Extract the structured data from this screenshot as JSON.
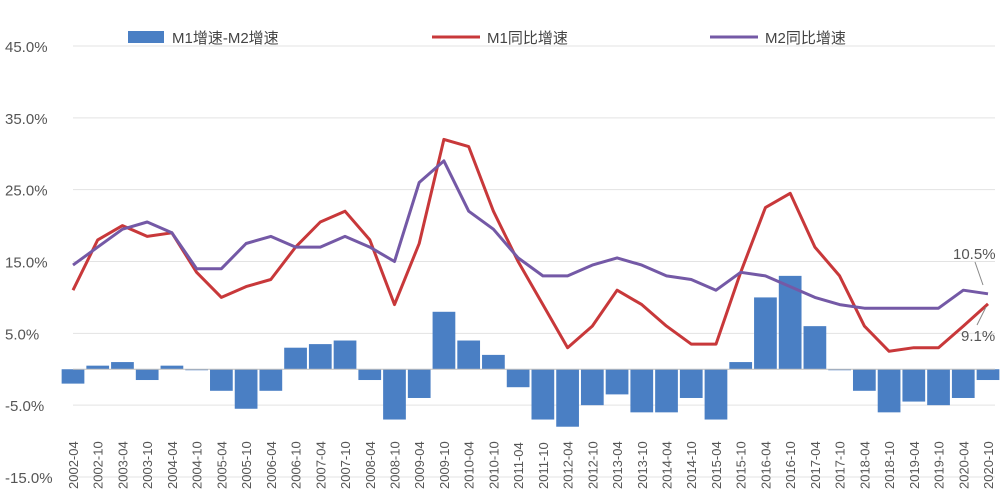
{
  "chart_data": {
    "type": "bar+line",
    "title": "",
    "xlabel": "",
    "ylabel": "",
    "ylim": [
      -15,
      45
    ],
    "y_ticks": [
      "45.0%",
      "35.0%",
      "25.0%",
      "15.0%",
      "5.0%",
      "-5.0%",
      "-15.0%"
    ],
    "y_tick_values": [
      45,
      35,
      25,
      15,
      5,
      -5,
      -15
    ],
    "x_ticks": [
      "2002-04",
      "2002-10",
      "2003-04",
      "2003-10",
      "2004-04",
      "2004-10",
      "2005-04",
      "2005-10",
      "2006-04",
      "2006-10",
      "2007-04",
      "2007-10",
      "2008-04",
      "2008-10",
      "2009-04",
      "2009-10",
      "2010-04",
      "2010-10",
      "2011-04",
      "2011-10",
      "2012-04",
      "2012-10",
      "2013-04",
      "2013-10",
      "2014-04",
      "2014-10",
      "2015-04",
      "2015-10",
      "2016-04",
      "2016-10",
      "2017-04",
      "2017-10",
      "2018-04",
      "2018-10",
      "2019-04",
      "2019-10",
      "2020-04",
      "2020-10"
    ],
    "grid": true,
    "legend_position": "top",
    "colors": {
      "bar": "#4a7fc4",
      "m1": "#c8383a",
      "m2": "#7459a6"
    },
    "series": [
      {
        "name": "M1增速-M2增速",
        "kind": "bar",
        "x": [
          "2002-04",
          "2002-10",
          "2003-04",
          "2003-10",
          "2004-04",
          "2004-10",
          "2005-04",
          "2005-10",
          "2006-04",
          "2006-10",
          "2007-04",
          "2007-10",
          "2008-04",
          "2008-10",
          "2009-04",
          "2009-10",
          "2010-04",
          "2010-10",
          "2011-04",
          "2011-10",
          "2012-04",
          "2012-10",
          "2013-04",
          "2013-10",
          "2014-04",
          "2014-10",
          "2015-04",
          "2015-10",
          "2016-04",
          "2016-10",
          "2017-04",
          "2017-10",
          "2018-04",
          "2018-10",
          "2019-04",
          "2019-10",
          "2020-04",
          "2020-10"
        ],
        "values": [
          -2,
          0.5,
          1,
          -1.5,
          0.5,
          0,
          -3,
          -5.5,
          -3,
          3,
          3.5,
          4,
          -1.5,
          -7,
          -4,
          8,
          4,
          2,
          -2.5,
          -7,
          -8,
          -5,
          -3.5,
          -6,
          -6,
          -4,
          -7,
          1,
          10,
          13,
          6,
          0,
          -3,
          -6,
          -4.5,
          -5,
          -4,
          -1.5
        ]
      },
      {
        "name": "M1同比增速",
        "kind": "line",
        "x": [
          "2002-04",
          "2002-10",
          "2003-04",
          "2003-10",
          "2004-04",
          "2004-10",
          "2005-04",
          "2005-10",
          "2006-04",
          "2006-10",
          "2007-04",
          "2007-10",
          "2008-04",
          "2008-10",
          "2009-04",
          "2009-10",
          "2010-04",
          "2010-10",
          "2011-04",
          "2011-10",
          "2012-04",
          "2012-10",
          "2013-04",
          "2013-10",
          "2014-04",
          "2014-10",
          "2015-04",
          "2015-10",
          "2016-04",
          "2016-10",
          "2017-04",
          "2017-10",
          "2018-04",
          "2018-10",
          "2019-04",
          "2019-10",
          "2020-04",
          "2020-10"
        ],
        "values": [
          11,
          18,
          20,
          18.5,
          19,
          13.5,
          10,
          11.5,
          12.5,
          17,
          20.5,
          22,
          18,
          9,
          17.5,
          32,
          31,
          22,
          15,
          9,
          3,
          6,
          11,
          9,
          6,
          3.5,
          3.5,
          13.5,
          22.5,
          24.5,
          17,
          13,
          6,
          2.5,
          3,
          3,
          6,
          9.1
        ]
      },
      {
        "name": "M2同比增速",
        "kind": "line",
        "x": [
          "2002-04",
          "2002-10",
          "2003-04",
          "2003-10",
          "2004-04",
          "2004-10",
          "2005-04",
          "2005-10",
          "2006-04",
          "2006-10",
          "2007-04",
          "2007-10",
          "2008-04",
          "2008-10",
          "2009-04",
          "2009-10",
          "2010-04",
          "2010-10",
          "2011-04",
          "2011-10",
          "2012-04",
          "2012-10",
          "2013-04",
          "2013-10",
          "2014-04",
          "2014-10",
          "2015-04",
          "2015-10",
          "2016-04",
          "2016-10",
          "2017-04",
          "2017-10",
          "2018-04",
          "2018-10",
          "2019-04",
          "2019-10",
          "2020-04",
          "2020-10"
        ],
        "values": [
          14.5,
          17,
          19.5,
          20.5,
          19,
          14,
          14,
          17.5,
          18.5,
          17,
          17,
          18.5,
          17,
          15,
          26,
          29,
          22,
          19.5,
          15.5,
          13,
          13,
          14.5,
          15.5,
          14.5,
          13,
          12.5,
          11,
          13.5,
          13,
          11.5,
          10,
          9,
          8.5,
          8.5,
          8.5,
          8.5,
          11,
          10.5
        ]
      }
    ],
    "annotations": [
      "10.5%",
      "9.1%"
    ]
  }
}
